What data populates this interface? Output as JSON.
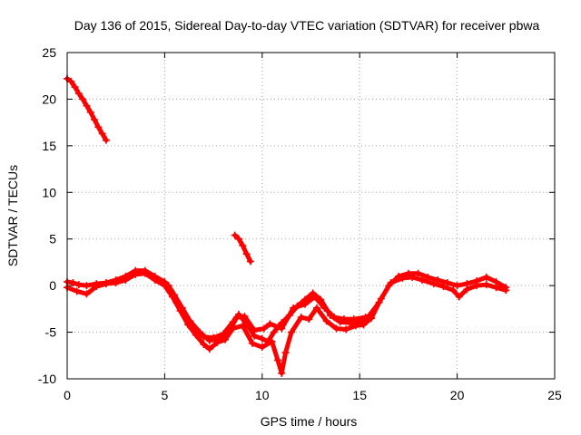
{
  "chart_data": {
    "type": "scatter",
    "title": "Day 136 of 2015, Sidereal Day-to-day VTEC variation (SDTVAR) for receiver pbwa",
    "xlabel": "GPS time / hours",
    "ylabel": "SDTVAR / TECUs",
    "xlim": [
      0,
      25
    ],
    "ylim": [
      -10,
      25
    ],
    "xticks": [
      0,
      5,
      10,
      15,
      20,
      25
    ],
    "yticks": [
      -10,
      -5,
      0,
      5,
      10,
      15,
      20,
      25
    ],
    "grid": true,
    "series_color": "#ff0000",
    "series": [
      {
        "name": "segment-a",
        "points": [
          [
            0.0,
            22.2
          ],
          [
            0.2,
            21.9
          ],
          [
            0.4,
            21.3
          ],
          [
            0.6,
            20.6
          ],
          [
            0.8,
            20.0
          ],
          [
            1.0,
            19.3
          ],
          [
            1.2,
            18.6
          ],
          [
            1.4,
            17.8
          ],
          [
            1.6,
            17.0
          ],
          [
            1.8,
            16.3
          ],
          [
            2.0,
            15.6
          ]
        ]
      },
      {
        "name": "segment-b",
        "points": [
          [
            8.6,
            5.4
          ],
          [
            8.8,
            5.0
          ],
          [
            9.0,
            4.3
          ],
          [
            9.2,
            3.4
          ],
          [
            9.4,
            2.6
          ]
        ]
      },
      {
        "name": "main-band-1",
        "points": [
          [
            0.0,
            0.4
          ],
          [
            0.3,
            0.3
          ],
          [
            0.6,
            0.1
          ],
          [
            1.0,
            0.0
          ],
          [
            1.5,
            0.2
          ],
          [
            2.0,
            0.3
          ],
          [
            2.5,
            0.6
          ],
          [
            3.0,
            1.0
          ],
          [
            3.5,
            1.6
          ],
          [
            4.0,
            1.6
          ],
          [
            4.5,
            1.0
          ],
          [
            5.0,
            0.4
          ],
          [
            5.3,
            -0.5
          ],
          [
            5.6,
            -1.8
          ],
          [
            6.0,
            -3.2
          ],
          [
            6.5,
            -4.5
          ],
          [
            7.0,
            -5.5
          ],
          [
            7.5,
            -5.6
          ],
          [
            8.0,
            -5.2
          ],
          [
            8.5,
            -3.9
          ],
          [
            8.8,
            -3.1
          ],
          [
            9.2,
            -4.1
          ],
          [
            9.6,
            -5.4
          ],
          [
            10.0,
            -5.7
          ],
          [
            10.3,
            -6.0
          ],
          [
            10.6,
            -5.0
          ],
          [
            11.0,
            -4.0
          ],
          [
            11.4,
            -3.2
          ],
          [
            11.8,
            -2.2
          ],
          [
            12.2,
            -1.5
          ],
          [
            12.6,
            -0.8
          ],
          [
            13.0,
            -1.5
          ],
          [
            13.5,
            -3.2
          ],
          [
            14.0,
            -3.9
          ],
          [
            14.5,
            -4.0
          ],
          [
            15.0,
            -3.9
          ],
          [
            15.5,
            -3.2
          ],
          [
            16.0,
            -1.8
          ],
          [
            16.5,
            0.0
          ],
          [
            17.0,
            1.0
          ],
          [
            17.5,
            1.3
          ],
          [
            18.0,
            1.3
          ],
          [
            18.5,
            0.9
          ],
          [
            19.0,
            0.6
          ],
          [
            19.5,
            0.3
          ],
          [
            20.0,
            0.0
          ],
          [
            20.5,
            0.2
          ],
          [
            21.0,
            0.5
          ],
          [
            21.5,
            0.9
          ],
          [
            22.0,
            0.4
          ],
          [
            22.5,
            -0.2
          ]
        ]
      },
      {
        "name": "main-band-2",
        "points": [
          [
            0.0,
            -0.2
          ],
          [
            0.5,
            -0.6
          ],
          [
            1.0,
            -0.9
          ],
          [
            1.5,
            -0.1
          ],
          [
            2.0,
            0.2
          ],
          [
            2.5,
            0.3
          ],
          [
            3.0,
            0.6
          ],
          [
            3.5,
            1.2
          ],
          [
            4.0,
            1.3
          ],
          [
            4.5,
            0.6
          ],
          [
            5.0,
            0.0
          ],
          [
            5.4,
            -1.2
          ],
          [
            5.8,
            -2.7
          ],
          [
            6.2,
            -4.2
          ],
          [
            6.6,
            -5.3
          ],
          [
            7.0,
            -6.3
          ],
          [
            7.3,
            -6.8
          ],
          [
            7.7,
            -6.1
          ],
          [
            8.1,
            -5.8
          ],
          [
            8.5,
            -4.6
          ],
          [
            9.0,
            -4.3
          ],
          [
            9.5,
            -6.2
          ],
          [
            10.0,
            -6.6
          ],
          [
            10.5,
            -6.0
          ],
          [
            10.8,
            -8.0
          ],
          [
            11.0,
            -9.4
          ],
          [
            11.2,
            -7.2
          ],
          [
            11.5,
            -5.0
          ],
          [
            12.0,
            -3.4
          ],
          [
            12.4,
            -3.6
          ],
          [
            12.8,
            -2.4
          ],
          [
            13.3,
            -3.8
          ],
          [
            13.8,
            -4.6
          ],
          [
            14.3,
            -4.7
          ],
          [
            14.8,
            -4.3
          ],
          [
            15.2,
            -4.2
          ],
          [
            15.6,
            -3.5
          ],
          [
            16.1,
            -1.4
          ],
          [
            16.6,
            0.3
          ],
          [
            17.2,
            0.8
          ],
          [
            17.7,
            0.9
          ],
          [
            18.2,
            0.6
          ],
          [
            18.8,
            0.2
          ],
          [
            19.3,
            -0.1
          ],
          [
            19.8,
            -0.5
          ],
          [
            20.1,
            -1.2
          ],
          [
            20.5,
            -0.4
          ],
          [
            21.0,
            0.0
          ],
          [
            21.5,
            0.1
          ],
          [
            22.0,
            -0.2
          ],
          [
            22.5,
            -0.5
          ]
        ]
      },
      {
        "name": "main-band-3",
        "points": [
          [
            5.2,
            0.0
          ],
          [
            5.5,
            -1.0
          ],
          [
            5.9,
            -2.4
          ],
          [
            6.3,
            -3.8
          ],
          [
            6.8,
            -5.0
          ],
          [
            7.3,
            -5.9
          ],
          [
            7.8,
            -5.7
          ],
          [
            8.2,
            -5.3
          ],
          [
            8.7,
            -3.4
          ],
          [
            9.1,
            -3.3
          ],
          [
            9.6,
            -4.8
          ],
          [
            10.1,
            -4.6
          ],
          [
            10.4,
            -4.1
          ],
          [
            11.0,
            -4.6
          ],
          [
            11.6,
            -2.4
          ],
          [
            12.2,
            -2.0
          ],
          [
            12.7,
            -1.2
          ],
          [
            13.2,
            -2.4
          ],
          [
            13.7,
            -3.4
          ],
          [
            14.2,
            -3.6
          ],
          [
            14.7,
            -3.6
          ],
          [
            15.3,
            -3.4
          ]
        ]
      }
    ]
  }
}
